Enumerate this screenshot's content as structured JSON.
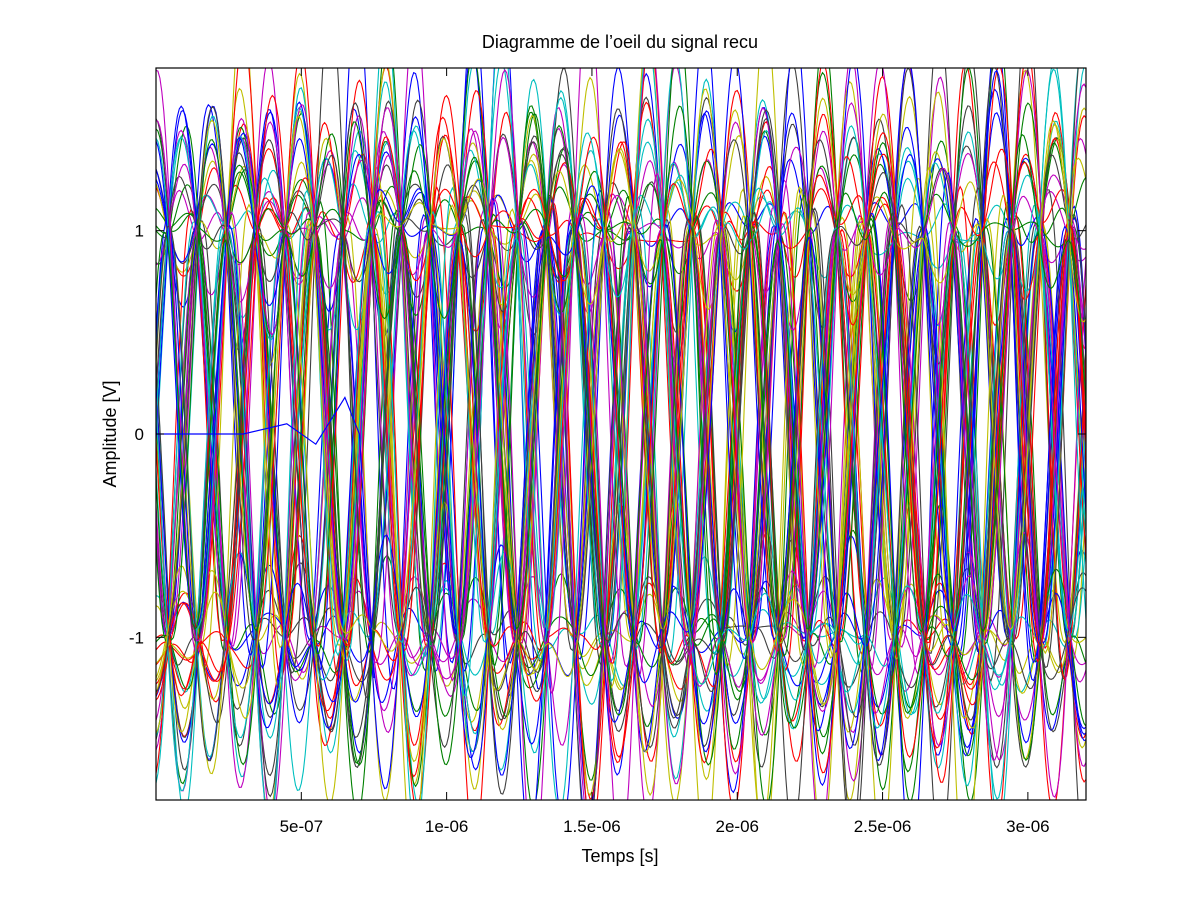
{
  "chart_data": {
    "type": "line",
    "title": "Diagramme de l’oeil du signal recu",
    "xlabel": "Temps [s]",
    "ylabel": "Amplitude [V]",
    "xlim": [
      0.0,
      3.2e-06
    ],
    "ylim": [
      -1.8,
      1.8
    ],
    "x_ticks": [
      {
        "value": 5e-07,
        "label": "5e-07"
      },
      {
        "value": 1e-06,
        "label": "1e-06"
      },
      {
        "value": 1.5e-06,
        "label": "1.5e-06"
      },
      {
        "value": 2e-06,
        "label": "2e-06"
      },
      {
        "value": 2.5e-06,
        "label": "2.5e-06"
      },
      {
        "value": 3e-06,
        "label": "3e-06"
      }
    ],
    "y_ticks": [
      {
        "value": 1,
        "label": "1"
      },
      {
        "value": 0,
        "label": "0"
      },
      {
        "value": -1,
        "label": "-1"
      }
    ],
    "grid": false,
    "legend": "none",
    "symbol_period": 1e-07,
    "trace_count": 70,
    "colors": [
      "#0000ff",
      "#ff0000",
      "#00bfbf",
      "#bf00bf",
      "#bfbf00",
      "#404040",
      "#008000"
    ],
    "traces_note_start_trace": {
      "x": [
        0,
        3e-07,
        4.5e-07,
        5.5e-07,
        6.5e-07,
        7e-07,
        7.5e-07
      ],
      "y": [
        0,
        0,
        0.05,
        -0.05,
        0.18,
        0.0,
        -1.2
      ]
    }
  }
}
